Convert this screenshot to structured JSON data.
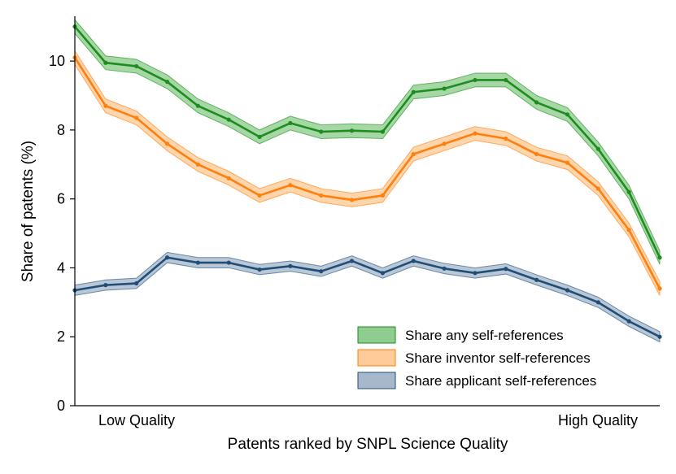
{
  "chart_data": {
    "type": "line",
    "title": "",
    "xlabel": "Patents ranked by SNPL Science Quality",
    "ylabel": "Share of patents (%)",
    "x_start_label": "Low Quality",
    "x_end_label": "High Quality",
    "x": [
      1,
      2,
      3,
      4,
      5,
      6,
      7,
      8,
      9,
      10,
      11,
      12,
      13,
      14,
      15,
      16,
      17,
      18,
      19,
      20
    ],
    "xlim": [
      1,
      20
    ],
    "ylim": [
      0,
      11.3
    ],
    "yticks": [
      0,
      2,
      4,
      6,
      8,
      10
    ],
    "grid": false,
    "legend_position": "bottom-right",
    "series": [
      {
        "name": "Share any self-references",
        "color": "#1e8c1e",
        "fill": "#5cb85c",
        "values": [
          11.0,
          9.95,
          9.85,
          9.4,
          8.7,
          8.3,
          7.8,
          8.2,
          7.95,
          7.98,
          7.95,
          9.1,
          9.2,
          9.45,
          9.45,
          8.8,
          8.45,
          7.45,
          6.2,
          4.3
        ],
        "band": 0.2
      },
      {
        "name": "Share inventor self-references",
        "color": "#ff7f0e",
        "fill": "#ffb266",
        "values": [
          10.1,
          8.7,
          8.35,
          7.6,
          7.0,
          6.6,
          6.1,
          6.4,
          6.1,
          5.97,
          6.1,
          7.3,
          7.6,
          7.9,
          7.75,
          7.3,
          7.05,
          6.3,
          5.1,
          3.4
        ],
        "band": 0.2
      },
      {
        "name": "Share applicant self-references",
        "color": "#1f4e79",
        "fill": "#7f99b5",
        "values": [
          3.35,
          3.5,
          3.55,
          4.3,
          4.15,
          4.15,
          3.95,
          4.05,
          3.9,
          4.2,
          3.85,
          4.2,
          3.98,
          3.85,
          3.97,
          3.65,
          3.35,
          3.0,
          2.45,
          2.0
        ],
        "band": 0.15
      }
    ]
  }
}
